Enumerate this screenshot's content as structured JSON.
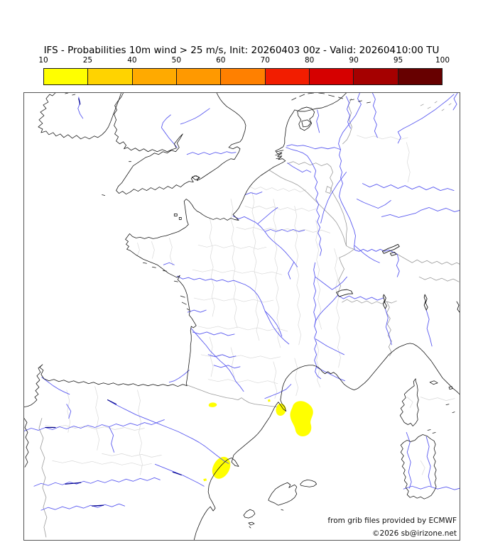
{
  "title": "IFS - Probabilities 10m wind > 25 m/s, Init: 20260403 00z - Valid: 20260410:00 TU",
  "colorbar": {
    "unit": "%",
    "tick_labels": [
      "10",
      "25",
      "40",
      "50",
      "60",
      "70",
      "80",
      "90",
      "95",
      "100"
    ],
    "segment_colors": [
      "#ffff00",
      "#ffd300",
      "#ffaa00",
      "#ff9900",
      "#ff8000",
      "#f21d00",
      "#d60000",
      "#a50000",
      "#670000"
    ]
  },
  "map": {
    "credit_line_1": "from grib files provided by ECMWF",
    "credit_line_2": "©2026 sb@irizone.net",
    "probability_areas": [
      {
        "location": "Gulf of Lion offshore, southeast of Cap de Creus",
        "probability": "10-25"
      },
      {
        "location": "Cap de Creus coastal area",
        "probability": "10-25"
      },
      {
        "location": "Roussillon plain near Perpignan",
        "probability": "10-25"
      },
      {
        "location": "Valencia coast near the Ebro delta",
        "probability": "10-25"
      }
    ],
    "colors": {
      "coastline": "#1a1a1a",
      "river": "#5a5af0",
      "reservoir": "#00008b",
      "country_border": "#9a9a9a",
      "department_border": "#d8d8d8",
      "probability_fill": "#ffff00"
    },
    "layers": [
      {
        "name": "department-borders",
        "stroke": "#d8d8d8",
        "width": 0.7,
        "fill": "none",
        "paths": [
          "M318,132 L326,136 334,133 342,137 350,134 358,138 366,135 374,139 382,136 390,140 398,137",
          "M312,160 L322,163 332,160 342,164 352,161 362,165 372,162 382,166 392,163 402,167 412,164",
          "M300,190 L312,193 324,190 336,194 348,191 360,195 372,192 384,196 396,193 408,197 420,194 432,198",
          "M246,215 L258,218 270,215 282,219 294,216 306,220 318,217 330,221 342,218",
          "M238,250 L252,253 266,250 280,254 294,251 308,255 322,252 336,256 350,253 364,257",
          "M240,290 L254,293 268,290 282,294 296,291 310,295 324,292 338,296 352,293",
          "M246,330 L260,333 274,330 288,334 302,331 316,335 330,332 344,336 358,333 372,337",
          "M250,370 L264,373 278,370 292,374 306,371 320,375 334,372 348,376 362,373",
          "M260,405 L274,408 288,405 302,409 316,406 330,410 344,407 358,411",
          "M262,176 L265,190 262,204 266,218 263,232 267,246 264,260 268,274 265,288 269,302 266,316",
          "M292,150 L295,164 292,178 296,192 293,206 297,220 294,234 298,248 295,262 299,276 296,290 300,304 297,318 301,332",
          "M322,140 L325,154 322,168 326,182 323,196 327,210 324,224 328,238 325,252 329,266 326,280 330,294 327,308 331,322 328,336 332,350",
          "M352,150 L355,164 352,178 356,192 353,206 357,220 354,234 358,248 355,262 359,276 356,290 360,304 357,318 361,332 358,346 362,360",
          "M382,160 L385,174 382,188 386,202 383,216 387,230 384,244 388,258 385,272 389,286 386,300 390,314 387,328 391,342 388,356",
          "M412,180 L415,194 412,208 416,222 413,236 417,250 414,264 418,278 415,292 419,306 416,320 420,334",
          "M292,360 L296,374 293,388 297,402",
          "M262,345 L266,359 263,373 267,387 264,401",
          "M352,380 L356,394 353,408 357,422 354,432",
          "M382,375 L386,389 383,403 387,417 384,428",
          "M412,350 L416,364 413,378 417,392 414,406 418,416",
          "M438,220 L442,234 439,248 443,262 440,276 444,290 441,304 445,318 442,332 446,346 443,360 447,374 444,388",
          "M100,415 L104,430 101,445 105,460 102,475 106,490 103,505",
          "M160,420 L164,435 161,450 165,465 162,480 166,495 163,510 167,525 164,540",
          "M60,420 L64,435 61,450 65,465 62,480",
          "M30,470 L44,473 58,470 72,474 86,471 100,475 114,472 128,476 142,473 156,477 170,474",
          "M40,520 L54,523 68,520 82,524 96,521 110,525 124,522 138,526 152,523 166,527 180,524",
          "M110,510 L124,513 138,510 152,514 166,511 180,515 194,512",
          "M470,60 L482,64 494,61 506,65 518,62 530,66 542,63",
          "M540,70 L544,84 541,98 545,112 542,126",
          "M560,430 L572,434 584,431 596,435 608,432",
          "M541,430 L549,437 545,445",
          "M180,210 L184,222 181,234",
          "M205,205 L209,218 206,231 210,244",
          "M160,212 L163,222 160,230",
          "M560,520 L566,530 562,540"
        ]
      },
      {
        "name": "probability-areas",
        "stroke": "none",
        "width": 0,
        "fill": "#ffff00",
        "paths": [
          "M379,444 C381,436 390,434 397,437 C404,440 409,446 408,453 C407,459 403,463 405,469 C407,476 404,483 397,485 C390,487 384,483 383,476 C382,470 377,465 376,458 C375,452 377,449 379,444 Z",
          "M357,443 C359,438 365,438 368,442 C371,446 370,452 366,455 C362,458 357,456 356,451 C355,448 356,446 357,443 Z",
          "M261,440 C263,437 270,437 272,440 C273,443 268,445 264,444 C261,444 260,442 261,440 Z",
          "M344,434 L347,433 348,436 345,437 Z",
          "M269,543 C264,538 265,529 270,522 C275,515 283,512 288,517 C293,522 292,531 287,538 C282,545 274,548 269,543 Z",
          "M253,546 L257,545 258,548 254,549 Z"
        ]
      },
      {
        "name": "country-borders",
        "stroke": "#9a9a9a",
        "width": 0.8,
        "fill": "none",
        "paths": [
          "M346,109 L354,114 362,119 370,123 378,126 386,130 393,135 400,141 406,147 412,153 418,159 424,165 430,171 436,177 441,183 445,190 448,196 451,203 453,210 455,216 460,219 466,221",
          "M372,100 L380,97 388,101 396,98 404,102 412,99 420,103 428,100 433,104",
          "M433,104 L436,112 432,120 436,128 433,136 437,143 441,150 445,157 448,164 451,171 453,178 455,185 456,192 455,200 455,208 455,216",
          "M428,132 L434,135 432,142 426,140 Z",
          "M462,8 L458,18 462,28 459,38 463,48 460,58 456,66 450,72",
          "M466,221 L459,226 452,230 445,233 448,241 452,249 448,257 444,265 447,273 444,281 443,286",
          "M449,296 L456,292 463,296 470,293 477,297 484,294 491,298 498,295 505,298 512,295 519,297 526,294",
          "M512,295 L516,303 512,311 517,319 513,327 518,335 514,343 519,351 515,359 519,367 516,372",
          "M527,228 L534,232 541,236 548,240 555,236 562,240 569,237 576,241 583,238 590,242 597,239 604,243 611,240 615,242",
          "M558,260 L566,264 574,261 582,265 590,262 598,266 606,263 614,267",
          "M230,413 L238,416 246,419 254,422 262,425 270,427 278,429 286,431 294,432 302,434 307,431 311,434 318,438 326,440 334,441 342,442 350,443 357,444",
          "M25,460 L21,474 27,488 23,502 29,516 25,530 30,544 26,558 31,572 27,586 32,600 28,614 31,628",
          "M560,18 L564,16 M570,22 L574,20 M580,14 L583,12 M590,25 L593,23 M600,17 L603,15"
        ]
      },
      {
        "name": "rivers",
        "stroke": "#5a5af0",
        "width": 0.9,
        "fill": "none",
        "paths": [
          "M77,6 L79,14 76,22 79,30 83,36",
          "M216,77 L210,70 204,63 199,56 194,49 196,42 201,36 207,31",
          "M230,87 L238,84 246,87 254,84 262,87 270,84 278,86 286,83 293,85 299,84",
          "M262,22 L255,27 248,32 241,36 234,39 227,42 221,44",
          "M474,0 L471,8 476,16 472,24 468,32 462,40 456,48 450,56 446,64 444,72 447,80 445,88 448,96 446,104 449,112 447,120 450,128 447,136 445,146 448,154 452,162 456,170 460,178 463,186 466,194 468,202 467,210 466,218 467,222 473,224 479,221 485,224 491,221 497,224 503,221 509,224 515,222 521,225 527,228 529,236 526,244 530,252 527,260",
          "M414,24 L416,32 413,40 415,48 417,56",
          "M447,80 L438,77 429,79 420,77 411,79 402,76 394,74 386,75 378,73 371,75",
          "M370,77 L378,80 386,82 394,85 400,89 404,95 408,102 412,110 410,118 414,126 411,134 415,142 412,150 416,158 413,166 417,174 414,182 418,190 415,198 419,206 417,214 420,222 418,230",
          "M455,112 L449,120 443,128 438,136 433,144 429,152 426,160 423,168 421,176 419,184",
          "M372,99 L379,104 386,108 393,112 399,109 405,112",
          "M312,144 L320,141 328,143 336,140",
          "M295,174 L303,178 311,175 319,179 327,183 334,189 340,196 345,203 351,209 357,214 363,219 369,225 375,232 381,239 386,246",
          "M340,196 L348,193 356,196 364,193 372,196 380,193 388,196 396,194",
          "M330,185 L337,179 344,173 351,167 358,162",
          "M381,239 L377,247 373,255 376,263",
          "M216,259 L224,263 232,261 240,264 248,262 256,265 264,263 272,266 280,264 288,267 296,265 304,268 312,271 319,275 325,280 330,286 334,293 337,300 340,308 344,316 348,324 352,331 357,338 362,344 368,350 374,355",
          "M340,308 L346,314 352,321 357,328 361,336 364,344",
          "M236,333 L243,341 250,349 257,357 263,365 270,372 277,379 284,385 290,392 295,400 299,408 305,415 310,422",
          "M238,338 L248,341 258,338 268,342 278,339 288,343 297,341",
          "M260,370 L270,373 280,370 290,374 299,372",
          "M268,385 L278,388 288,385 297,389 305,387",
          "M233,392 L226,398 219,403 212,407 205,409",
          "M231,310 L240,307 249,310 257,307",
          "M443,286 L436,294 429,301 422,308 416,315 412,322 410,330 413,338 410,346 413,354 410,362 413,370 410,378 413,386 411,394 414,400 419,404",
          "M410,330 L412,320 409,310 412,300 409,290 412,280 409,270 411,260 409,250 411,240",
          "M411,260 L419,266 427,272 435,278 443,273 450,267 456,260",
          "M412,348 L420,353 428,358 436,362 444,366 452,370",
          "M413,388 L421,392 429,396 437,400 445,404 453,407",
          "M340,432 L350,428 360,424 370,419 377,412",
          "M443,286 L451,291 459,287 467,291 475,288 483,292 491,289 499,293 507,290",
          "M467,216 L474,222 481,228 488,233 495,237 502,240",
          "M118,434 L128,440 138,445 148,450 158,455 168,459 178,463 188,467 198,471 208,475 218,479 228,484 238,489 247,494 256,500 265,507 274,514 282,520 289,524",
          "M0,478 L10,474 20,477 30,473 40,476 50,472 60,475 70,471 80,474 90,470 100,473 110,469 120,472 130,468 140,471 150,467 160,470 170,466 180,469 190,465 198,462",
          "M14,556 L24,552 34,555 44,551 54,554 64,550 74,553 84,549 94,552 104,548 114,551 124,547 134,550 144,546 154,549 164,545 174,548 184,544 192,547",
          "M24,590 L34,586 44,589 54,585 64,588 74,584 84,587 94,583 104,586 114,582 124,585 134,581 142,584",
          "M25,402 L33,408 41,414 49,419 57,423 64,426",
          "M185,525 L195,529 205,533 215,537 225,541 235,546 245,551 254,556",
          "M120,472 L126,484 123,496 127,508",
          "M455,5 L459,14 456,23 460,32 457,41 461,50",
          "M492,0 L496,9 493,18 497,27 494,36 498,45 495,54 499,63",
          "M607,2 L598,10 589,17 580,24 571,30 562,36 553,41 544,46 536,50 528,55 532,63 528,71",
          "M478,128 L488,133 498,129 508,134 518,130 528,135 538,131 548,136 558,132 568,137 578,133 588,138 598,135 607,138",
          "M470,150 L480,155 490,159 500,163 510,158 518,152",
          "M505,175 L517,172 529,176 541,173 553,170 560,166 572,162 584,167 596,163 608,168 615,166",
          "M536,560 L548,556 560,560 572,556 584,560 596,557 608,561 615,559",
          "M540,480 L545,494 541,508 546,522 543,536 547,550 544,559",
          "M568,486 L572,500 569,514 574,528 571,542 575,556",
          "M510,305 L514,318 511,331 516,344 519,356",
          "M568,307 L572,320 569,333 573,346 576,358",
          "M612,0 L607,8 611,16 606,24",
          "M60,440 L66,450 63,460",
          "M197,243 L205,240 212,243"
        ]
      },
      {
        "name": "reservoirs",
        "stroke": "#00008b",
        "width": 1.2,
        "fill": "none",
        "paths": [
          "M58,553 L80,551",
          "M96,584 L112,583",
          "M118,434 L130,440",
          "M77,8 L79,16",
          "M210,536 L222,540",
          "M30,473 L44,473"
        ]
      },
      {
        "name": "lakes",
        "stroke": "#1a1a1a",
        "width": 0.9,
        "fill": "none",
        "paths": [
          "M506,224 L514,220 522,217 528,214 530,217 523,221 515,224 508,227 Z",
          "M517,227 L523,225 526,228 519,230 Z",
          "M441,282 L448,279 456,278 462,280 464,284 458,284 451,286 445,288 Z",
          "M508,285 L511,290 509,296 512,301 510,305 507,299 509,293 507,288 Z",
          "M566,285 L569,291 567,297 570,303 568,307 565,300 567,294 565,289 Z",
          "M611,295 L614,300 612,306 615,310"
        ]
      },
      {
        "name": "coastlines",
        "stroke": "#1a1a1a",
        "width": 0.8,
        "fill": "none",
        "paths": [
          "M44,0 L40,4 36,2 31,8 34,13 27,17 31,22 23,27 28,32 21,38 26,43 20,48 26,51 24,56 31,54 35,59 41,56 45,61 51,58 56,63 62,59 68,64 74,60 80,65 86,62 92,65 99,61 104,63 110,59 115,54 119,48 122,41 125,33 128,25 131,17 134,9 136,3 137,0",
          "M58,1 L62,0 M68,3 L72,2",
          "M140,0 L137,6 132,12 128,18 131,24 127,30 130,38 127,46 131,52 128,58 133,62 130,68 135,72 140,69 144,74 141,79 146,77 151,81 157,78 163,82 169,79 175,83 181,80 188,83 195,80 202,83 209,80 215,78 212,72 216,67 220,62 224,58 220,65 216,71 219,77 214,83 208,81 202,85 196,83 190,87 184,85 178,89 172,91 166,95 160,99 154,103 150,109 146,115 142,121 138,127 133,132 130,138 134,142 139,139 144,143 150,140 155,136 161,139 167,135 173,138 179,134 185,137 191,133 197,136 203,132 209,135 215,130 221,133 227,128 233,125 239,126 236,121 241,117 247,119 244,124 250,121 256,117 262,113 268,109 274,105 280,100 286,96 292,93 297,94 300,89 303,84 305,79 301,76 295,79 289,77 293,73 299,71 305,69 308,65 310,59 312,53 313,46 311,40 307,35 303,31 298,27 292,23 286,19 281,14 277,9 274,4 272,0",
          "M237,119 L243,117 248,120 242,123 Z M110,144 L114,145 M148,97 L151,97",
          "M212,171 L216,171 216,174 212,174 Z M219,176 L222,176 222,179 219,179 Z",
          "M455,0 L449,6 443,11 436,15 429,18 421,21 413,22 405,24 397,26 389,26 382,24 379,29 375,35 372,42 370,49 369,57 368,64 368,71 366,76 361,79 355,82 358,86 364,84 358,90 364,89 359,94 365,93 369,96 364,99 358,102 352,105 346,109 340,113 334,117 328,122 323,127 319,132 315,138 312,144 309,151 306,157 303,163 299,168 295,172 299,176 303,180 297,179 292,177 287,180 282,177 277,179 272,177 267,179 262,177 257,175 252,172 248,169 244,167 240,163 237,158 233,153 229,150 226,153 227,160 228,167 229,174 230,181 232,186 228,190 223,193 218,196 212,198 206,200 200,202 194,203 188,205 182,206 176,204 170,206 164,204 158,205 153,203 149,199 146,203 143,207 147,210 144,214 148,217 145,221 150,223 154,226 158,229 163,232 168,235 173,237 178,239 183,241 188,243 192,246 196,249 200,252 204,255 208,257 212,259 216,261 220,258 217,264 221,268 225,273 228,279 230,285 231,291 232,297 233,303 234,309 233,314 237,319 240,324 243,329 239,332 236,330 235,336 236,343 236,350 235,357 235,365 234,373 233,381 232,389 231,397 230,405 229,411 230,414 224,412 217,415 210,412 203,414 196,412 189,414 182,412 175,414 168,412 161,414 154,411 147,413 140,411 133,413 126,410 119,412 112,410 105,412 98,409 91,411 84,408 77,410 70,407 63,409 56,406 49,408 42,405 35,407 28,404 24,398 27,392 22,388 26,384 20,389 23,395 18,400 22,406 17,411 21,416 16,421 20,426 15,430 18,434 14,438 10,441 5,443 0,444",
          "M386,26 L392,22 399,20 406,22 410,27 408,33 403,37 406,43 402,49 396,53 390,50 388,44 391,38 387,32 Z",
          "M392,40 L400,38 405,42 401,47 394,48 Z",
          "M378,10 L384,7 M389,5 L396,2 M401,1 L409,0 M416,0 L424,1 M430,3 L438,5 M444,6 L450,8 M460,10 L466,9 M472,12 L477,11 M484,14 L489,13",
          "M357,83 L366,81 M355,88 L364,86 M356,93 L363,91",
          "M0,460 L4,466 1,473 5,480 2,487 6,494 3,501 6,508 2,515 5,522 1,529",
          "M240,632 L243,621 247,611 251,602 255,595 259,589 263,585 267,591 270,587 266,579 262,572 260,564 261,555 264,547 268,540 273,533 278,527 283,522 288,518 293,516 298,520 303,528 298,527 293,522 296,512 301,507 307,502 313,497 319,492 325,487 330,482 335,476 339,470 343,464 347,458 350,452 353,446 356,441 359,437 362,441 366,447 370,450 368,444 364,439 362,434 363,428 364,422 365,416 367,410 370,404 374,399 379,394 384,391 390,388 396,386 402,385 408,385 414,387 418,390 421,394 425,397 429,394 433,397 437,395 441,398 444,402 448,407 452,412 456,415 461,418 466,420 471,418 476,414 481,410 486,405 491,399 496,393 501,387 506,381 511,375 515,370 520,366 525,362 530,359 535,357 540,355 545,354 550,355 555,358 560,362 565,367 570,373 575,379 579,385 583,391 587,397 591,403 596,408 601,413 606,418 611,422 615,426",
          "M553,404 L550,408 551,414 547,417 542,421 537,426 539,431 534,436 537,441 532,446 535,451 531,456 534,461 537,466 542,469 546,467 549,471 553,467 556,462 555,455 557,448 555,441 557,434 555,427 556,420 555,413 553,407 Z",
          "M552,491 L557,486 563,483 569,485 574,489 579,492 581,497 579,503 581,509 578,515 581,521 579,527 582,533 580,539 582,545 580,551 582,557 579,563 575,569 570,572 565,574 560,571 555,573 550,570 545,572 541,568 543,563 539,558 541,553 537,548 539,543 536,538 538,533 534,528 537,523 533,518 536,513 532,508 535,503 532,498 536,494 541,491 546,493 Z",
          "M573,409 L579,407 584,410 578,412 Z M600,416 L604,415 605,418 601,419 Z M570,477 L574,476 M577,481 L581,480 M596,441 L600,440 M605,452 L608,451",
          "M346,573 L350,566 355,560 361,556 367,553 372,551 376,554 374,558 378,556 382,554 385,557 383,562 385,567 382,572 377,576 371,579 365,581 359,583 354,580 349,578 345,576 Z",
          "M390,553 L394,549 400,547 406,548 411,550 413,553 409,556 403,557 396,556 391,555 Z",
          "M310,597 L314,592 319,589 324,591 326,595 322,599 317,601 312,600 Z M317,608 L322,607 325,609 320,611 Z M318,613 L320,615",
          "M168,240 L173,241 M181,246 L186,247 M196,251 L201,252 M212,266 L217,267 M221,287 L227,289 M223,296 L229,299 M230,305 L233,307",
          "M363,589 L366,590"
        ]
      }
    ]
  }
}
